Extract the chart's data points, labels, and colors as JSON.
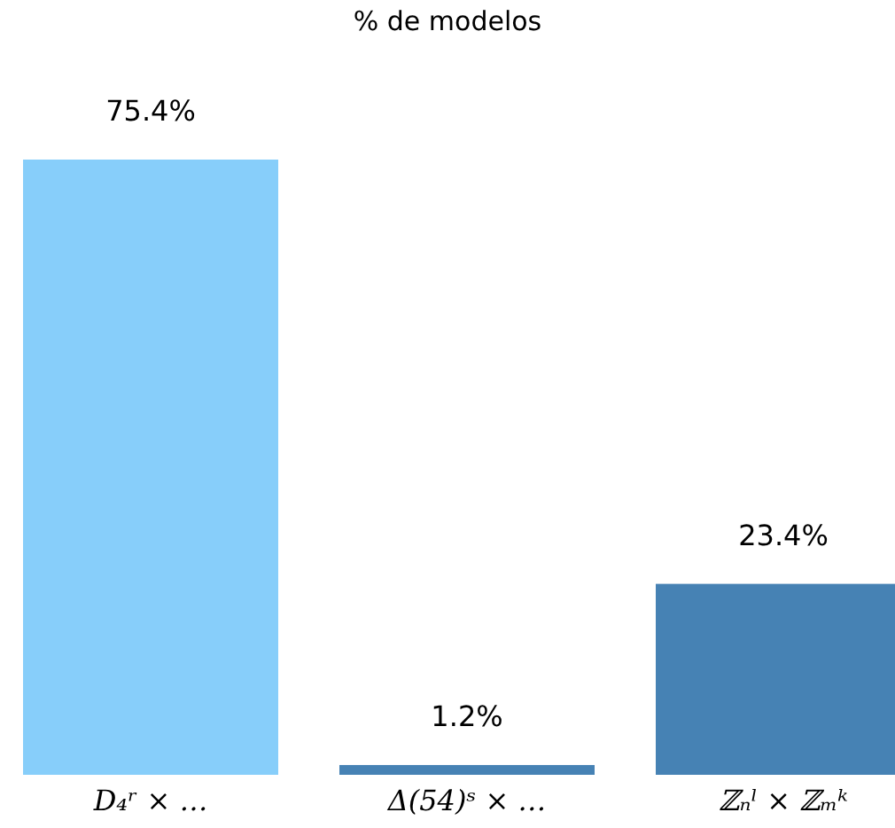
{
  "chart_data": {
    "type": "bar",
    "title": "% de modelos",
    "categories": [
      "D₄ʳ × …",
      "Δ(54)ˢ × …",
      "ℤₙˡ × ℤₘᵏ"
    ],
    "values": [
      75.4,
      1.2,
      23.4
    ],
    "colors": [
      "#87cefa",
      "#4682b4",
      "#4682b4"
    ],
    "value_labels": [
      "75.4%",
      "1.2%",
      "23.4%"
    ],
    "relative": false
  }
}
